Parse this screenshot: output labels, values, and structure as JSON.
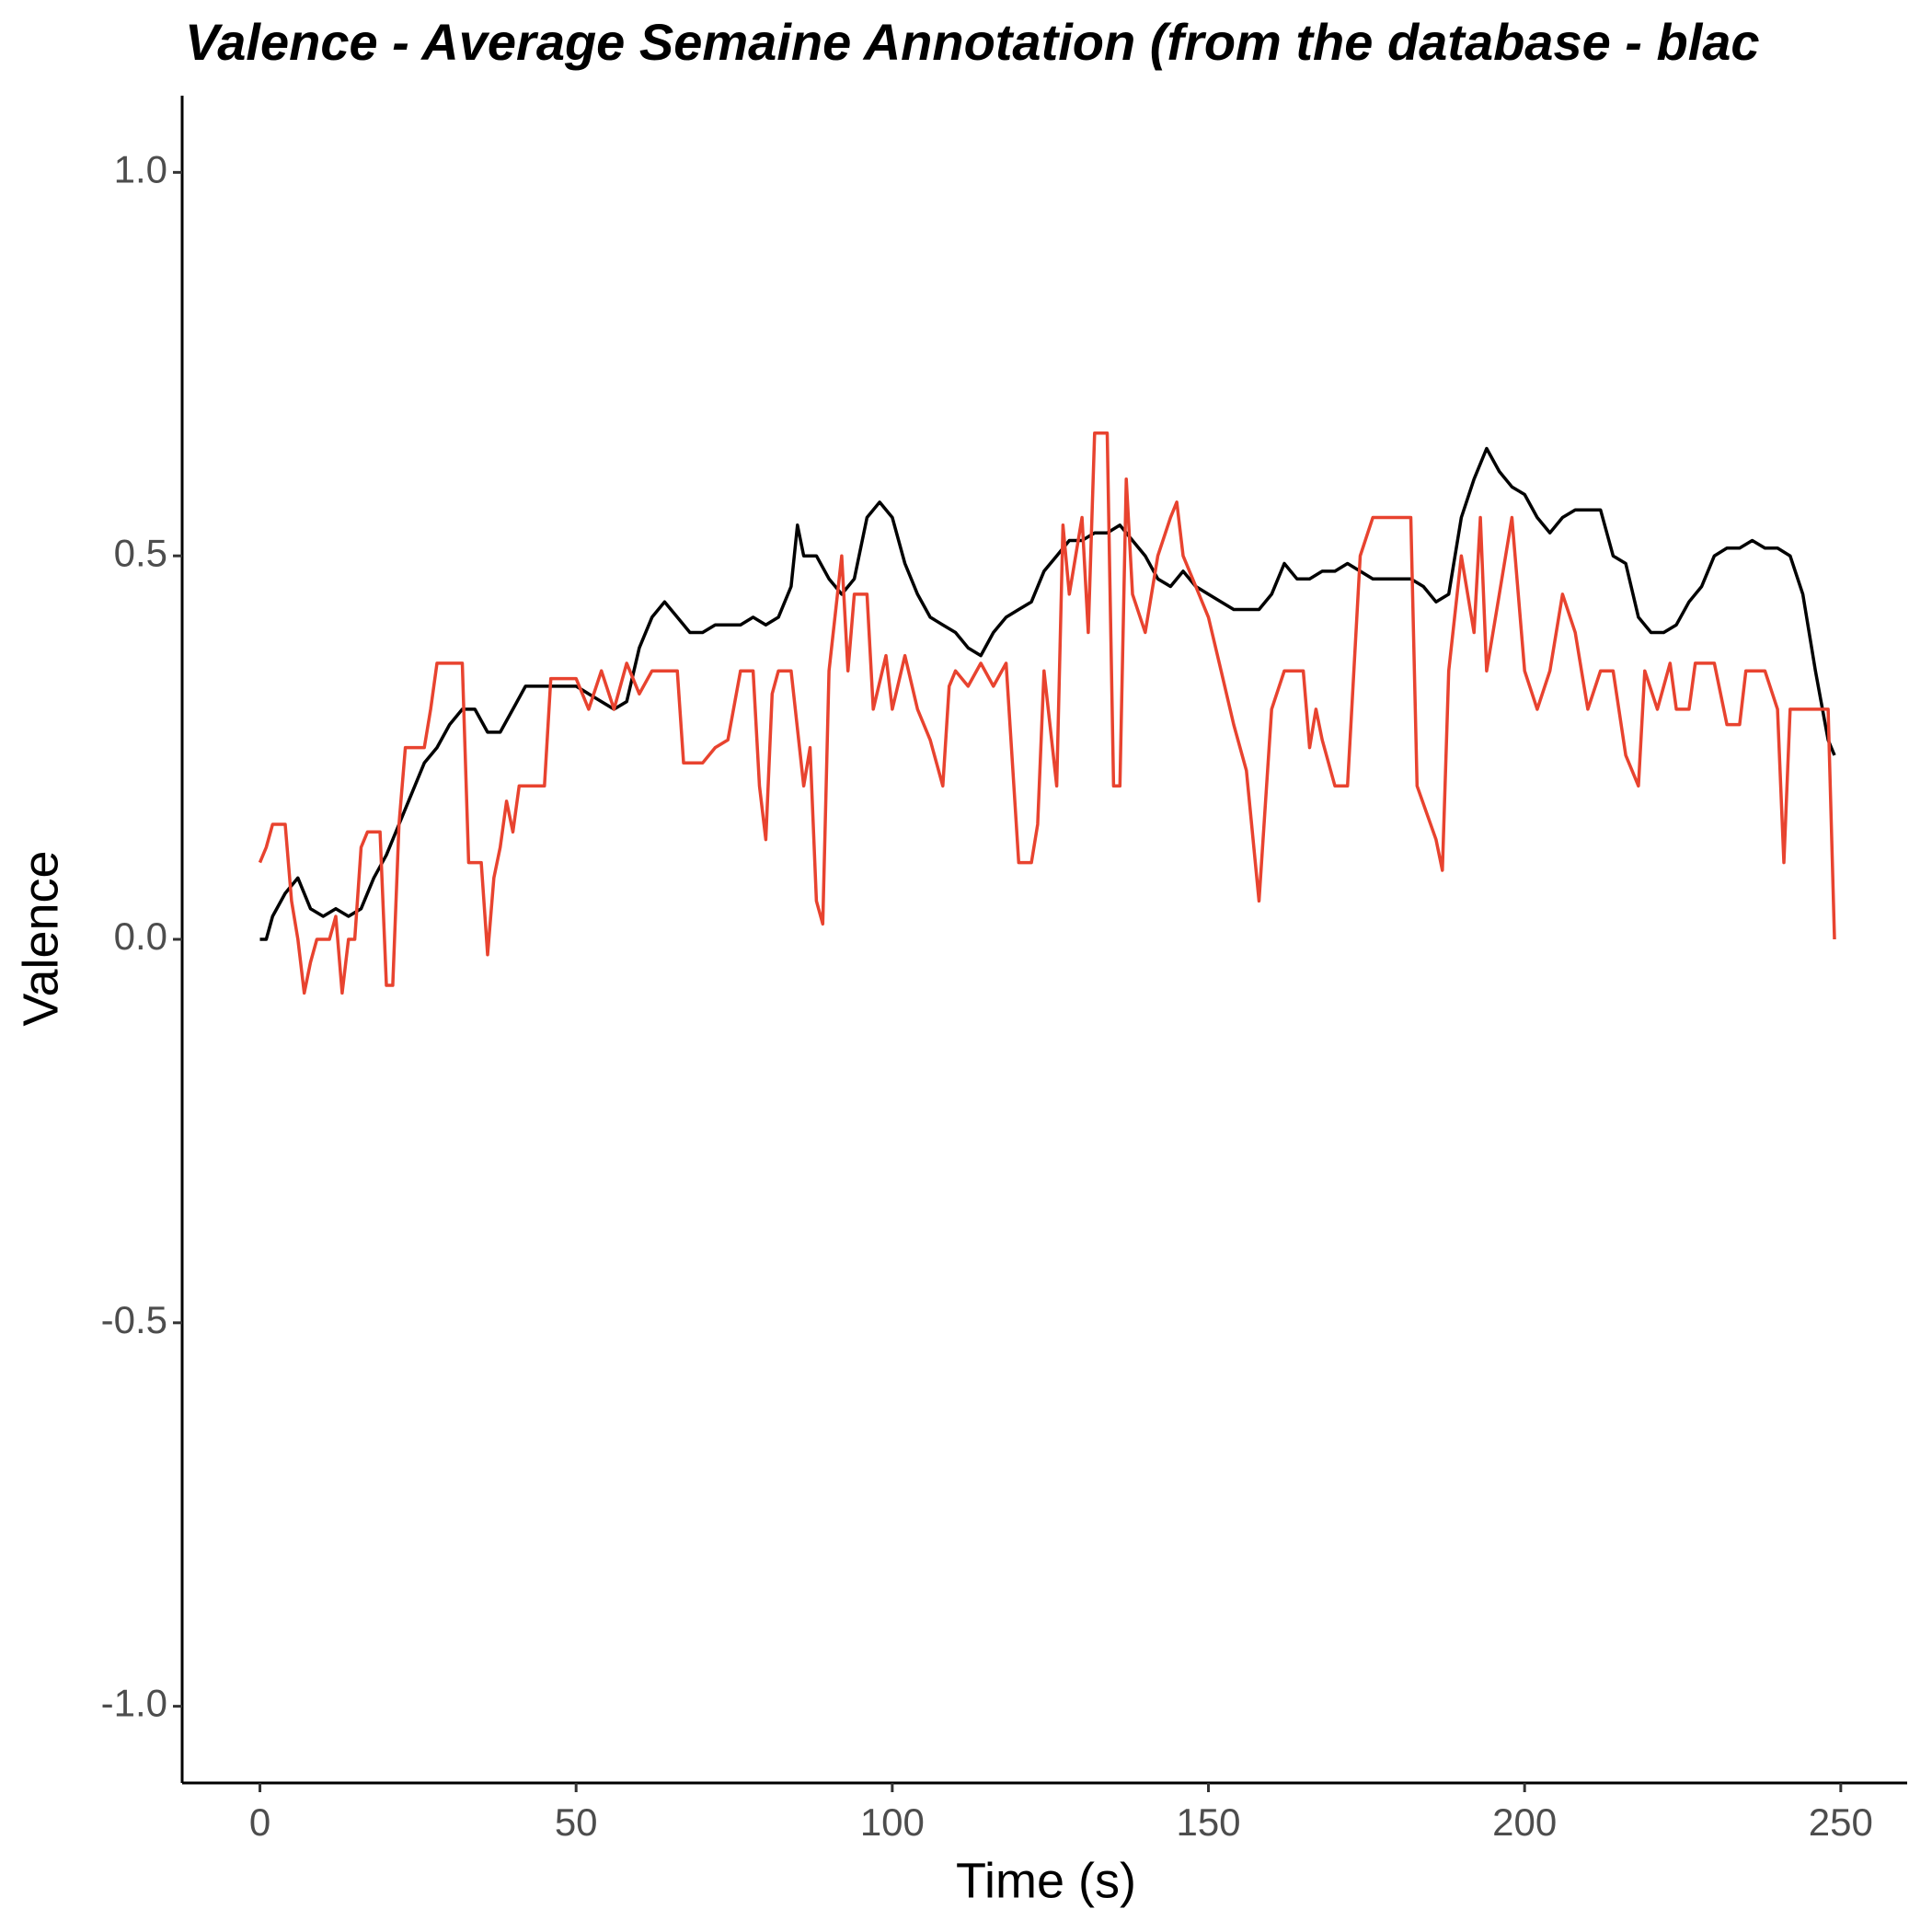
{
  "chart_data": {
    "type": "line",
    "title": "Valence - Average Semaine Annotation (from the database - blac",
    "x_label": "Time (s)",
    "y_label": "Valence",
    "xlim": [
      -12.3,
      260.5
    ],
    "ylim": [
      -1.1,
      1.1
    ],
    "xticks": [
      0,
      50,
      100,
      150,
      200,
      250
    ],
    "yticks": [
      {
        "value": -1,
        "label": "-1.0"
      },
      -0.5,
      {
        "value": 0,
        "label": "0.0"
      },
      0.5,
      {
        "value": 1,
        "label": "1.0"
      }
    ],
    "grid": false,
    "series": [
      {
        "color": "#000000",
        "x": [
          0,
          1,
          2,
          4,
          6,
          8,
          10,
          12,
          14,
          16,
          18,
          20,
          22,
          24,
          26,
          28,
          30,
          32,
          34,
          36,
          38,
          40,
          42,
          44,
          46,
          48,
          50,
          52,
          54,
          56,
          58,
          60,
          62,
          64,
          66,
          68,
          70,
          72,
          74,
          76,
          78,
          80,
          82,
          84,
          85,
          86,
          88,
          90,
          92,
          94,
          96,
          98,
          100,
          102,
          104,
          106,
          108,
          110,
          112,
          114,
          116,
          118,
          120,
          122,
          124,
          126,
          128,
          130,
          132,
          134,
          136,
          138,
          140,
          142,
          144,
          146,
          148,
          150,
          152,
          154,
          156,
          158,
          160,
          162,
          164,
          166,
          168,
          170,
          172,
          174,
          176,
          178,
          180,
          182,
          184,
          186,
          188,
          190,
          192,
          194,
          196,
          198,
          200,
          202,
          204,
          206,
          208,
          210,
          212,
          214,
          216,
          218,
          220,
          222,
          224,
          226,
          228,
          230,
          232,
          234,
          236,
          238,
          240,
          242,
          244,
          246,
          248,
          249
        ],
        "values": [
          0.0,
          0.0,
          0.03,
          0.06,
          0.08,
          0.04,
          0.03,
          0.04,
          0.03,
          0.04,
          0.08,
          0.11,
          0.15,
          0.19,
          0.23,
          0.25,
          0.28,
          0.3,
          0.3,
          0.27,
          0.27,
          0.3,
          0.33,
          0.33,
          0.33,
          0.33,
          0.33,
          0.32,
          0.31,
          0.3,
          0.31,
          0.38,
          0.42,
          0.44,
          0.42,
          0.4,
          0.4,
          0.41,
          0.41,
          0.41,
          0.42,
          0.41,
          0.42,
          0.46,
          0.54,
          0.5,
          0.5,
          0.47,
          0.45,
          0.47,
          0.55,
          0.57,
          0.55,
          0.49,
          0.45,
          0.42,
          0.41,
          0.4,
          0.38,
          0.37,
          0.4,
          0.42,
          0.43,
          0.44,
          0.48,
          0.5,
          0.52,
          0.52,
          0.53,
          0.53,
          0.54,
          0.52,
          0.5,
          0.47,
          0.46,
          0.48,
          0.46,
          0.45,
          0.44,
          0.43,
          0.43,
          0.43,
          0.45,
          0.49,
          0.47,
          0.47,
          0.48,
          0.48,
          0.49,
          0.48,
          0.47,
          0.47,
          0.47,
          0.47,
          0.46,
          0.44,
          0.45,
          0.55,
          0.6,
          0.64,
          0.61,
          0.59,
          0.58,
          0.55,
          0.53,
          0.55,
          0.56,
          0.56,
          0.56,
          0.5,
          0.49,
          0.42,
          0.4,
          0.4,
          0.41,
          0.44,
          0.46,
          0.5,
          0.51,
          0.51,
          0.52,
          0.51,
          0.51,
          0.5,
          0.45,
          0.35,
          0.26,
          0.24
        ]
      },
      {
        "color": "#e8432f",
        "x": [
          0,
          1,
          2,
          4,
          5,
          6,
          7,
          8,
          9,
          11,
          12,
          13,
          14,
          15,
          16,
          17,
          19,
          20,
          21,
          22,
          23,
          26,
          27,
          28,
          30,
          32,
          33,
          35,
          36,
          37,
          38,
          39,
          40,
          41,
          45,
          46,
          50,
          52,
          54,
          56,
          58,
          60,
          62,
          66,
          67,
          70,
          72,
          74,
          76,
          78,
          79,
          80,
          81,
          82,
          84,
          86,
          87,
          88,
          89,
          90,
          92,
          93,
          94,
          96,
          97,
          99,
          100,
          102,
          104,
          106,
          108,
          109,
          110,
          112,
          114,
          116,
          118,
          120,
          122,
          123,
          124,
          126,
          127,
          128,
          130,
          131,
          132,
          134,
          135,
          136,
          137,
          138,
          140,
          142,
          144,
          145,
          146,
          148,
          150,
          152,
          154,
          156,
          158,
          160,
          162,
          165,
          166,
          167,
          168,
          170,
          172,
          174,
          176,
          180,
          182,
          183,
          186,
          187,
          188,
          190,
          192,
          193,
          194,
          196,
          198,
          200,
          202,
          204,
          206,
          208,
          210,
          212,
          214,
          216,
          218,
          219,
          221,
          223,
          224,
          226,
          227,
          230,
          232,
          234,
          235,
          238,
          240,
          241,
          242,
          244,
          246,
          248,
          249
        ],
        "values": [
          0.1,
          0.12,
          0.15,
          0.15,
          0.05,
          0.0,
          -0.07,
          -0.03,
          0.0,
          0.0,
          0.03,
          -0.07,
          0.0,
          0.0,
          0.12,
          0.14,
          0.14,
          -0.06,
          -0.06,
          0.15,
          0.25,
          0.25,
          0.3,
          0.36,
          0.36,
          0.36,
          0.1,
          0.1,
          -0.02,
          0.08,
          0.12,
          0.18,
          0.14,
          0.2,
          0.2,
          0.34,
          0.34,
          0.3,
          0.35,
          0.3,
          0.36,
          0.32,
          0.35,
          0.35,
          0.23,
          0.23,
          0.25,
          0.26,
          0.35,
          0.35,
          0.2,
          0.13,
          0.32,
          0.35,
          0.35,
          0.2,
          0.25,
          0.05,
          0.02,
          0.35,
          0.5,
          0.35,
          0.45,
          0.45,
          0.3,
          0.37,
          0.3,
          0.37,
          0.3,
          0.26,
          0.2,
          0.33,
          0.35,
          0.33,
          0.36,
          0.33,
          0.36,
          0.1,
          0.1,
          0.15,
          0.35,
          0.2,
          0.54,
          0.45,
          0.55,
          0.4,
          0.66,
          0.66,
          0.2,
          0.2,
          0.6,
          0.45,
          0.4,
          0.5,
          0.55,
          0.57,
          0.5,
          0.46,
          0.42,
          0.35,
          0.28,
          0.22,
          0.05,
          0.3,
          0.35,
          0.35,
          0.25,
          0.3,
          0.26,
          0.2,
          0.2,
          0.5,
          0.55,
          0.55,
          0.55,
          0.2,
          0.13,
          0.09,
          0.35,
          0.5,
          0.4,
          0.55,
          0.35,
          0.45,
          0.55,
          0.35,
          0.3,
          0.35,
          0.45,
          0.4,
          0.3,
          0.35,
          0.35,
          0.24,
          0.2,
          0.35,
          0.3,
          0.36,
          0.3,
          0.3,
          0.36,
          0.36,
          0.28,
          0.28,
          0.35,
          0.35,
          0.3,
          0.1,
          0.3,
          0.3,
          0.3,
          0.3,
          0.0
        ]
      }
    ]
  }
}
